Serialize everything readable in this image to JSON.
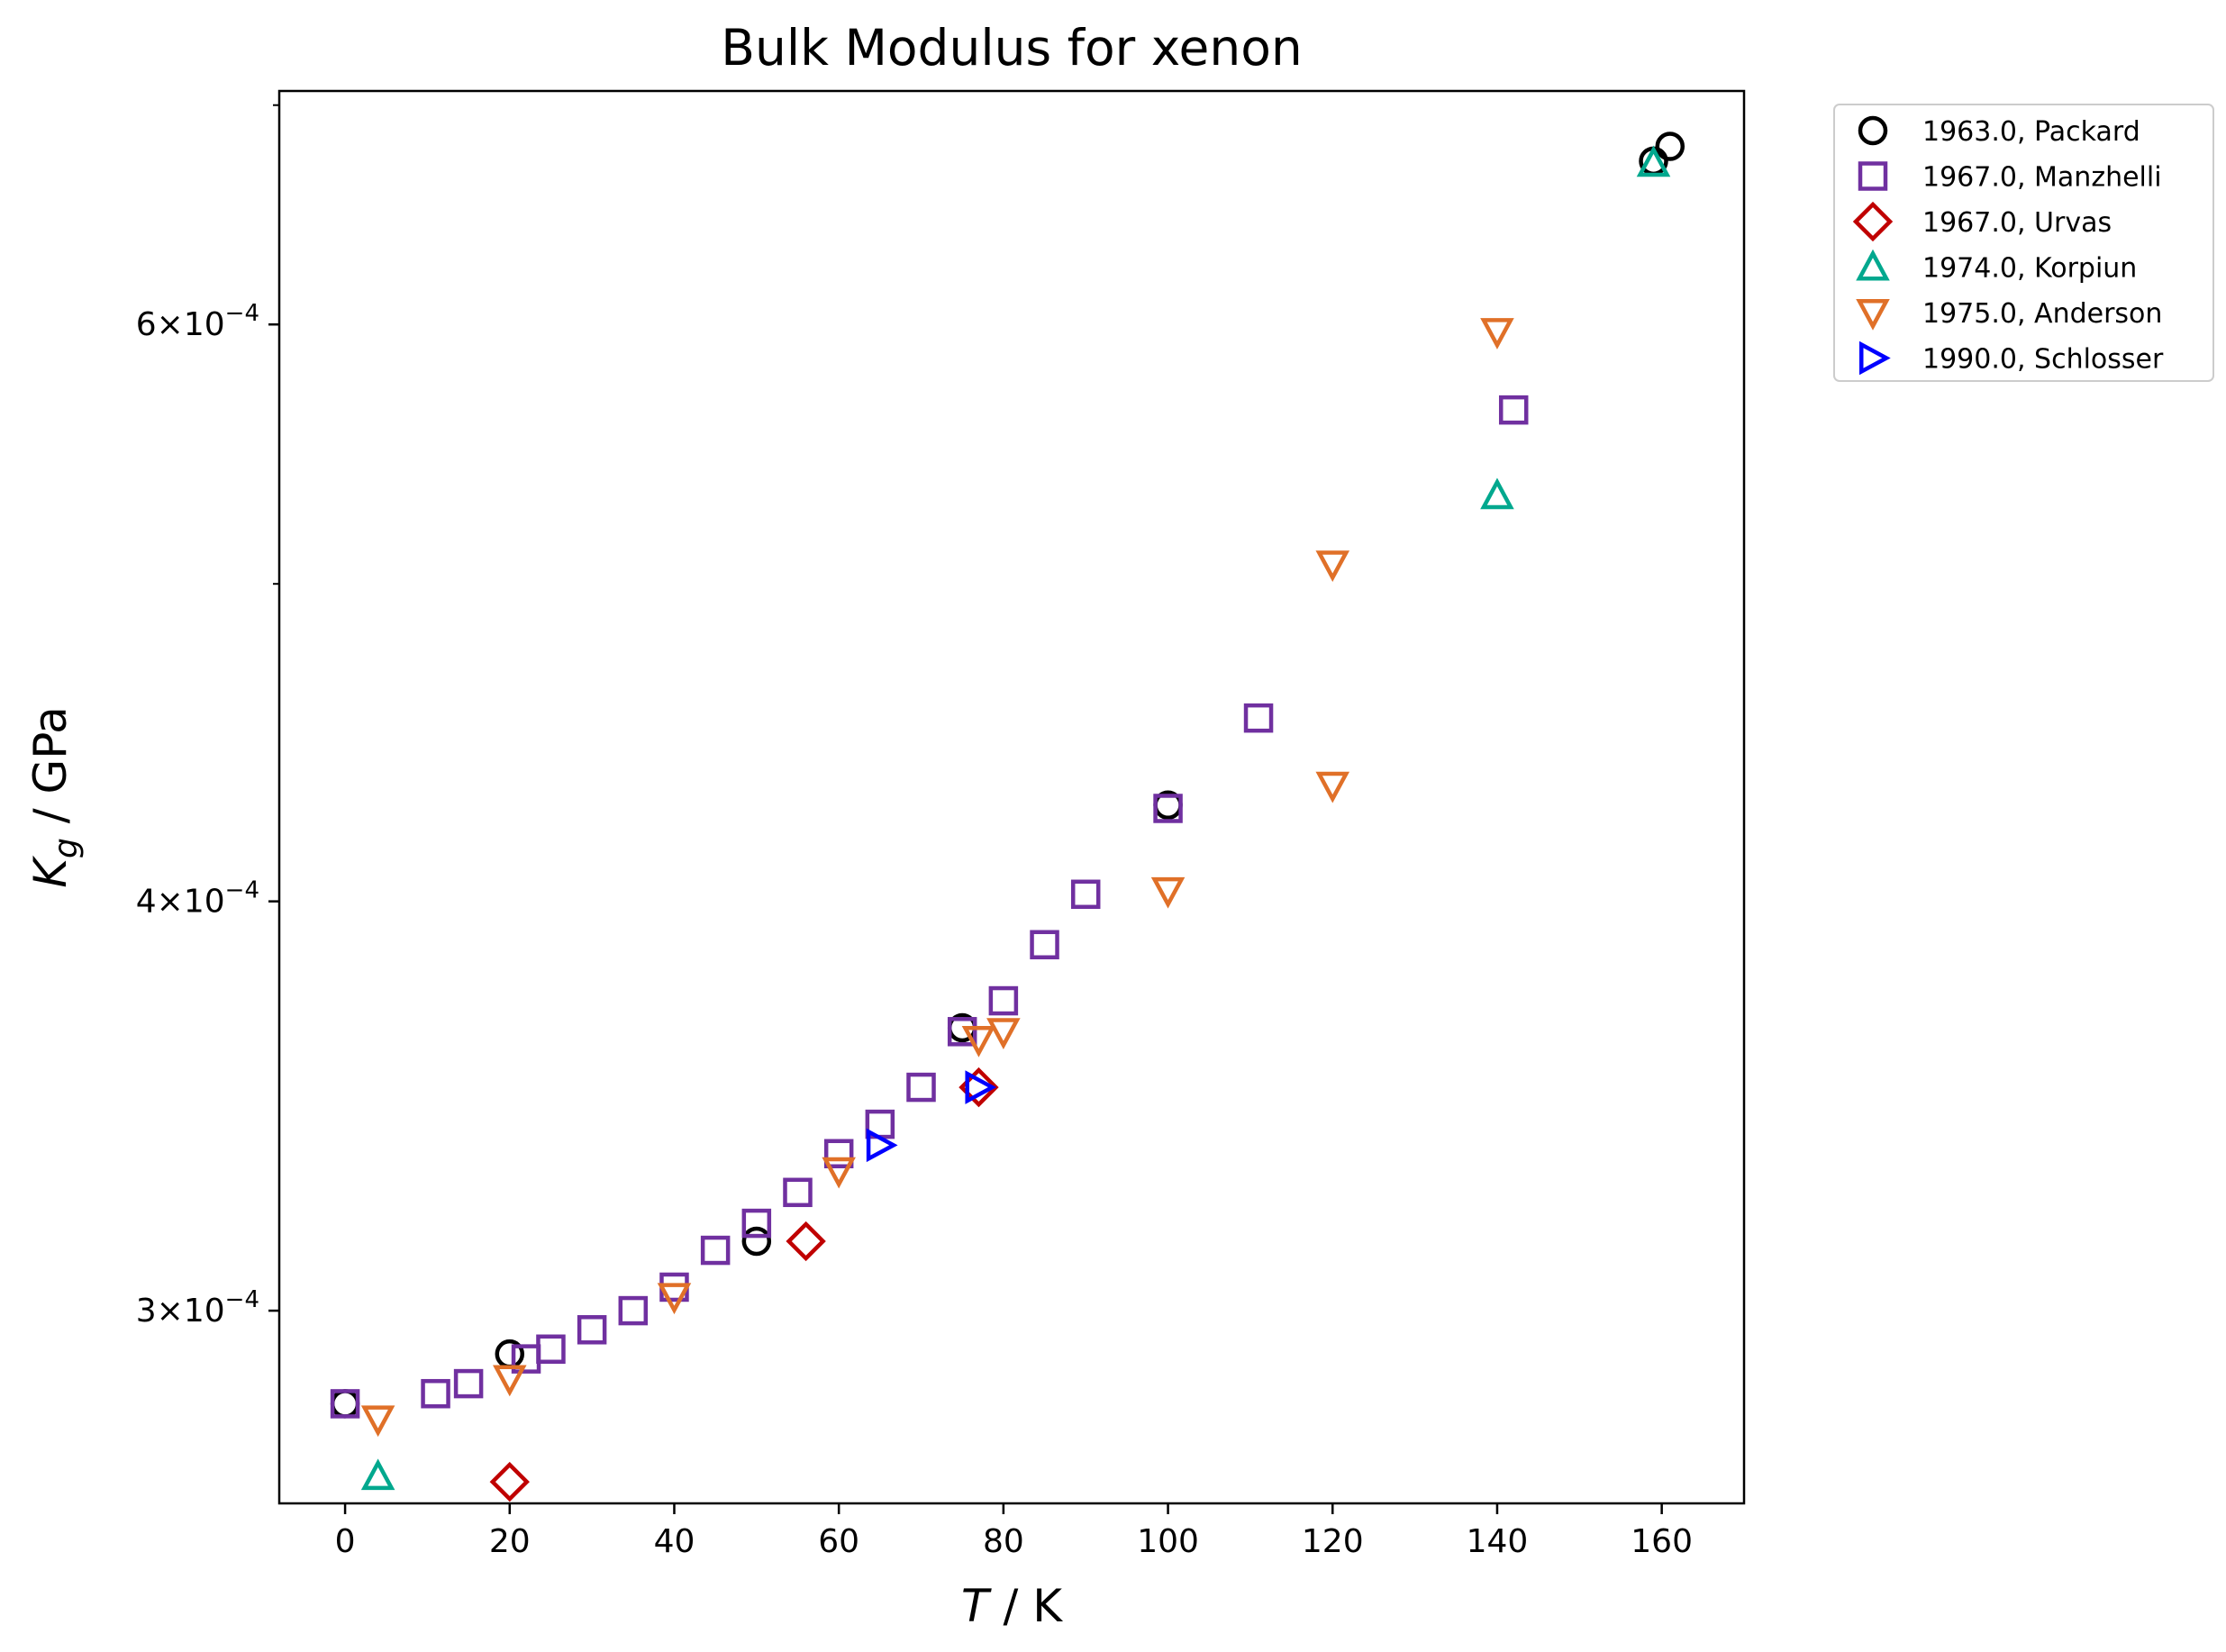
{
  "chart_data": {
    "type": "scatter",
    "title": "Bulk Modulus for xenon",
    "xlabel": {
      "var": "T",
      "unit": " / K"
    },
    "ylabel": {
      "var": "K",
      "sub": "g",
      "unit": " / GPa"
    },
    "xscale": "linear",
    "yscale": "log",
    "xlim": [
      -8,
      170
    ],
    "ylim": [
      0.000262,
      0.000707
    ],
    "xticks": [
      {
        "value": 0,
        "label": "0"
      },
      {
        "value": 20,
        "label": "20"
      },
      {
        "value": 40,
        "label": "40"
      },
      {
        "value": 60,
        "label": "60"
      },
      {
        "value": 80,
        "label": "80"
      },
      {
        "value": 100,
        "label": "100"
      },
      {
        "value": 120,
        "label": "120"
      },
      {
        "value": 140,
        "label": "140"
      },
      {
        "value": 160,
        "label": "160"
      }
    ],
    "yticks_major": [
      {
        "value": 0.0003,
        "mantissa": "3",
        "base": "10",
        "exp": "−4"
      },
      {
        "value": 0.0004,
        "mantissa": "4",
        "base": "10",
        "exp": "−4"
      },
      {
        "value": 0.0006,
        "mantissa": "6",
        "base": "10",
        "exp": "−4"
      }
    ],
    "yticks_minor": [
      0.0005,
      0.0007
    ],
    "grid": false,
    "legend_position": "outside-right",
    "series": [
      {
        "name": "1963.0, Packard",
        "marker": "circle",
        "color": "#000000",
        "points": [
          [
            0,
            0.000281
          ],
          [
            20,
            0.000291
          ],
          [
            50,
            0.000315
          ],
          [
            75,
            0.000366
          ],
          [
            100,
            0.000428
          ],
          [
            159,
            0.000673
          ],
          [
            161,
            0.00068
          ]
        ]
      },
      {
        "name": "1967.0, Manzhelli",
        "marker": "square",
        "color": "#7030a0",
        "points": [
          [
            0,
            0.000281
          ],
          [
            11,
            0.000283
          ],
          [
            15,
            0.000285
          ],
          [
            22,
            0.00029
          ],
          [
            25,
            0.000292
          ],
          [
            30,
            0.000296
          ],
          [
            35,
            0.0003
          ],
          [
            40,
            0.000305
          ],
          [
            45,
            0.000313
          ],
          [
            50,
            0.000319
          ],
          [
            55,
            0.000326
          ],
          [
            60,
            0.000335
          ],
          [
            65,
            0.000342
          ],
          [
            70,
            0.000351
          ],
          [
            75,
            0.000365
          ],
          [
            80,
            0.000373
          ],
          [
            85,
            0.000388
          ],
          [
            90,
            0.000402
          ],
          [
            100,
            0.000427
          ],
          [
            111,
            0.000455
          ],
          [
            142,
            0.000565
          ]
        ]
      },
      {
        "name": "1967.0, Urvas",
        "marker": "diamond",
        "color": "#c00000",
        "points": [
          [
            20,
            0.000266
          ],
          [
            56,
            0.000315
          ],
          [
            77,
            0.000351
          ]
        ]
      },
      {
        "name": "1974.0, Korpiun",
        "marker": "triangle-up",
        "color": "#00a88e",
        "points": [
          [
            4,
            0.000267
          ],
          [
            140,
            0.000532
          ],
          [
            159,
            0.000672
          ]
        ]
      },
      {
        "name": "1975.0, Anderson",
        "marker": "triangle-down",
        "color": "#e07028",
        "points": [
          [
            4,
            0.000278
          ],
          [
            20,
            0.000286
          ],
          [
            40,
            0.000303
          ],
          [
            60,
            0.000331
          ],
          [
            77,
            0.000363
          ],
          [
            80,
            0.000365
          ],
          [
            100,
            0.000403
          ],
          [
            120,
            0.000434
          ],
          [
            120,
            0.000507
          ],
          [
            140,
            0.000597
          ]
        ]
      },
      {
        "name": "1990.0, Schlosser",
        "marker": "triangle-right",
        "color": "#0000ff",
        "points": [
          [
            65,
            0.000337
          ],
          [
            77,
            0.000351
          ]
        ]
      }
    ]
  }
}
